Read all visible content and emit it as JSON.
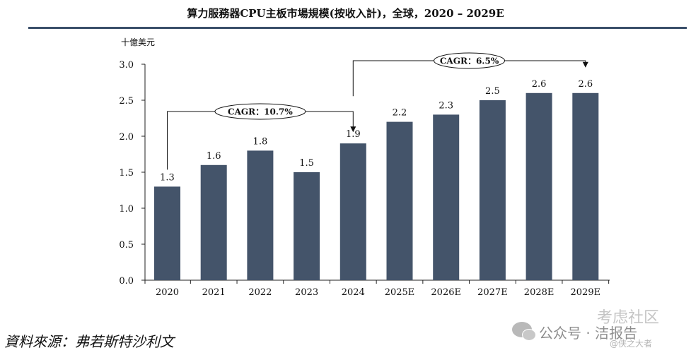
{
  "header": {
    "title": "算力服務器CPU主板市場規模(按收入計)，全球，2020 – 2029E"
  },
  "chart_data": {
    "type": "bar",
    "ylabel": "十億美元",
    "categories": [
      "2020",
      "2021",
      "2022",
      "2023",
      "2024",
      "2025E",
      "2026E",
      "2027E",
      "2028E",
      "2029E"
    ],
    "values": [
      1.3,
      1.6,
      1.8,
      1.5,
      1.9,
      2.2,
      2.3,
      2.5,
      2.6,
      2.6
    ],
    "value_labels": [
      "1.3",
      "1.6",
      "1.8",
      "1.5",
      "1.9",
      "2.2",
      "2.3",
      "2.5",
      "2.6",
      "2.6"
    ],
    "ylim": [
      0,
      3.0
    ],
    "yticks": [
      "0.0",
      "0.5",
      "1.0",
      "1.5",
      "2.0",
      "2.5",
      "3.0"
    ],
    "bar_color": "#44546a",
    "grid": false,
    "annotations": [
      {
        "label": "CAGR：10.7%",
        "from": "2020",
        "to": "2024"
      },
      {
        "label": "CAGR：6.5%",
        "from": "2024",
        "to": "2029E"
      }
    ]
  },
  "footer": {
    "source": "資料來源：弗若斯特沙利文"
  },
  "watermark": {
    "name": "公众号 · 洁报告",
    "logo_text": "考虑社区",
    "sub": "@侠之大者"
  }
}
